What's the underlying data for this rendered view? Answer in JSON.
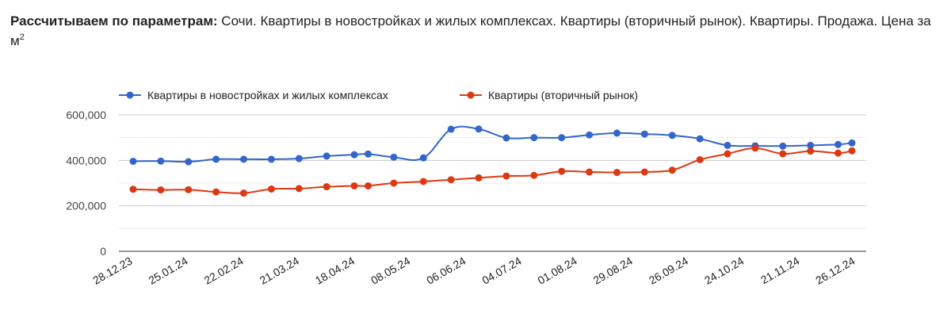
{
  "heading": {
    "label": "Рассчитываем по параметрам:",
    "text": "Сочи. Квартиры в новостройках и жилых комплексах. Квартиры (вторичный рынок). Квартиры. Продажа. Цена за м",
    "superscript": "2"
  },
  "chart_data": {
    "type": "line",
    "legend_position": "top-left",
    "grid": true,
    "ylim": [
      0,
      600000
    ],
    "y_ticks": [
      "0",
      "200,000",
      "400,000",
      "600,000"
    ],
    "x_tick_labels": [
      "28.12.23",
      "25.01.24",
      "22.02.24",
      "21.03.24",
      "18.04.24",
      "08.05.24",
      "06.06.24",
      "04.07.24",
      "01.08.24",
      "29.08.24",
      "26.09.24",
      "24.10.24",
      "21.11.24",
      "26.12.24"
    ],
    "x": [
      "28.12.23",
      "11.01.24",
      "25.01.24",
      "08.02.24",
      "22.02.24",
      "07.03.24",
      "21.03.24",
      "04.04.24",
      "18.04.24",
      "25.04.24",
      "08.05.24",
      "23.05.24",
      "06.06.24",
      "20.06.24",
      "04.07.24",
      "18.07.24",
      "01.08.24",
      "15.08.24",
      "29.08.24",
      "12.09.24",
      "26.09.24",
      "10.10.24",
      "24.10.24",
      "07.11.24",
      "21.11.24",
      "05.12.24",
      "19.12.24",
      "26.12.24"
    ],
    "series": [
      {
        "name": "Квартиры в новостройках и жилых комплексах",
        "color": "#3366cc",
        "values": [
          396000,
          397000,
          394000,
          405000,
          405000,
          405000,
          408000,
          419000,
          425000,
          428000,
          414000,
          411000,
          537000,
          538000,
          499000,
          500000,
          500000,
          512000,
          520000,
          516000,
          510000,
          495000,
          466000,
          464000,
          463000,
          466000,
          470000,
          477000
        ]
      },
      {
        "name": "Квартиры (вторичный рынок)",
        "color": "#dc3912",
        "values": [
          273000,
          270000,
          271000,
          261000,
          256000,
          274000,
          276000,
          284000,
          288000,
          288000,
          300000,
          307000,
          315000,
          323000,
          331000,
          334000,
          352000,
          349000,
          347000,
          349000,
          357000,
          403000,
          429000,
          454000,
          429000,
          441000,
          432000,
          442000
        ]
      }
    ]
  }
}
